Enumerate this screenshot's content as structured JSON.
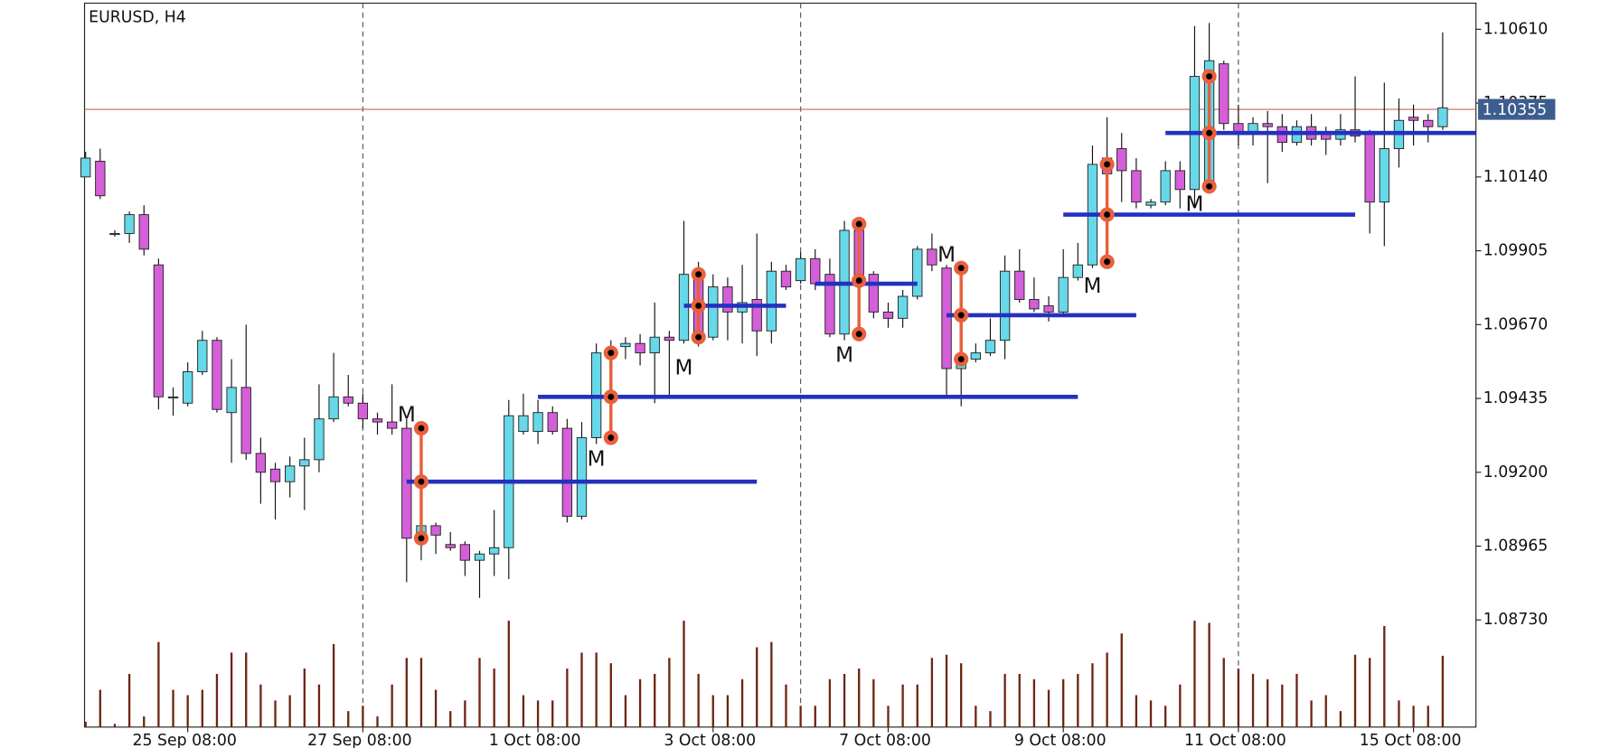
{
  "chart_data": {
    "type": "candlestick",
    "title": "EURUSD, H4",
    "categories": [
      null,
      null,
      null,
      null,
      null,
      null,
      null,
      "25 Sep 08:00",
      null,
      null,
      null,
      null,
      null,
      null,
      null,
      null,
      null,
      null,
      null,
      "27 Sep 08:00",
      null,
      null,
      null,
      null,
      null,
      null,
      null,
      null,
      null,
      null,
      null,
      "1 Oct 08:00",
      null,
      null,
      null,
      null,
      null,
      null,
      null,
      null,
      null,
      null,
      null,
      "3 Oct 08:00",
      null,
      null,
      null,
      null,
      null,
      null,
      null,
      null,
      null,
      null,
      null,
      "7 Oct 08:00",
      null,
      null,
      null,
      null,
      null,
      null,
      null,
      null,
      null,
      null,
      null,
      "9 Oct 08:00",
      null,
      null,
      null,
      null,
      null,
      null,
      null,
      null,
      null,
      null,
      null,
      "11 Oct 08:00",
      null,
      null,
      null,
      null,
      null,
      null,
      null,
      null,
      null,
      null,
      null,
      "15 Oct 08:00",
      null,
      null
    ],
    "open": [
      1.1014,
      1.1019,
      1.0996,
      1.0996,
      1.1002,
      1.0986,
      1.0944,
      1.0942,
      1.0952,
      1.0962,
      1.0939,
      1.0947,
      1.0926,
      1.0921,
      1.0917,
      1.0922,
      1.0924,
      1.0937,
      1.0944,
      1.0942,
      1.0937,
      1.0936,
      1.0934,
      1.09,
      1.0903,
      1.0897,
      1.0897,
      1.0892,
      1.0894,
      1.0896,
      1.0933,
      1.0933,
      1.0939,
      1.0934,
      1.0906,
      1.0931,
      1.0957,
      1.096,
      1.0961,
      1.0958,
      1.0963,
      1.0962,
      1.0983,
      1.0963,
      1.0979,
      1.0971,
      1.0975,
      1.0965,
      1.0984,
      1.0981,
      1.0988,
      1.0983,
      1.0964,
      1.0997,
      1.0983,
      1.0971,
      1.0969,
      1.0976,
      1.0991,
      1.0985,
      1.0953,
      1.0956,
      1.0958,
      1.0962,
      1.0984,
      1.0975,
      1.0973,
      1.0971,
      1.0982,
      1.0986,
      1.102,
      1.1023,
      1.1016,
      1.1005,
      1.1006,
      1.1016,
      1.101,
      1.1011,
      1.105,
      1.1031,
      1.1028,
      1.1031,
      1.103,
      1.1025,
      1.103,
      1.1028,
      1.1026,
      1.1029,
      1.1028,
      1.1006,
      1.1023,
      1.1033,
      1.1032,
      1.103
    ],
    "high": [
      1.1022,
      1.1023,
      1.0997,
      1.1003,
      1.1005,
      1.0988,
      1.0947,
      1.0955,
      1.0965,
      1.0963,
      1.0956,
      1.0967,
      1.0931,
      1.0923,
      1.0925,
      1.0931,
      1.0948,
      1.0958,
      1.0951,
      1.0945,
      1.0939,
      1.0948,
      1.0937,
      1.0908,
      1.0904,
      1.0901,
      1.0898,
      1.0895,
      1.0908,
      1.0943,
      1.0945,
      1.0943,
      1.0941,
      1.0937,
      1.0936,
      1.0961,
      1.0962,
      1.0963,
      1.0964,
      1.0974,
      1.0965,
      1.1,
      1.0987,
      1.0983,
      1.0982,
      1.0986,
      1.0996,
      1.0987,
      1.0986,
      1.099,
      1.0991,
      1.0988,
      1.1,
      1.1001,
      1.0984,
      1.0974,
      1.0978,
      1.0992,
      1.0996,
      1.0986,
      1.0969,
      1.0961,
      1.0969,
      1.0989,
      1.0991,
      1.0982,
      1.0976,
      1.0991,
      1.0993,
      1.1024,
      1.1033,
      1.1028,
      1.102,
      1.1007,
      1.1019,
      1.1019,
      1.1062,
      1.1063,
      1.1051,
      1.1037,
      1.1033,
      1.1035,
      1.1034,
      1.1032,
      1.1034,
      1.103,
      1.1034,
      1.1046,
      1.1029,
      1.1044,
      1.1039,
      1.1037,
      1.1034,
      1.106
    ],
    "low": [
      1.1014,
      1.1007,
      1.0995,
      1.0993,
      1.0989,
      1.094,
      1.0938,
      1.0941,
      1.0951,
      1.0939,
      1.0923,
      1.0924,
      1.091,
      1.0905,
      1.0912,
      1.0908,
      1.092,
      1.0936,
      1.0941,
      1.0934,
      1.0932,
      1.0932,
      1.0885,
      1.0892,
      1.0894,
      1.0895,
      1.0887,
      1.088,
      1.0887,
      1.0886,
      1.0932,
      1.0929,
      1.0932,
      1.0904,
      1.0905,
      1.0929,
      1.0934,
      1.0956,
      1.0954,
      1.0942,
      1.0944,
      1.0961,
      1.096,
      1.0962,
      1.0962,
      1.0961,
      1.0957,
      1.0961,
      1.0978,
      1.098,
      1.0978,
      1.0963,
      1.0962,
      1.0979,
      1.0969,
      1.0966,
      1.0966,
      1.0975,
      1.0984,
      1.0944,
      1.0941,
      1.0955,
      1.0957,
      1.0956,
      1.0974,
      1.0971,
      1.0968,
      1.097,
      1.0981,
      1.0985,
      1.1006,
      1.1006,
      1.1004,
      1.1004,
      1.1005,
      1.1004,
      1.1004,
      1.101,
      1.1029,
      1.1024,
      1.1024,
      1.1012,
      1.1022,
      1.1024,
      1.1024,
      1.1021,
      1.1024,
      1.1025,
      1.0996,
      1.0992,
      1.1017,
      1.1024,
      1.1025,
      1.1029
    ],
    "close": [
      1.102,
      1.1008,
      1.0996,
      1.1002,
      1.0991,
      1.0944,
      1.0944,
      1.0952,
      1.0962,
      1.094,
      1.0947,
      1.0926,
      1.092,
      1.0917,
      1.0922,
      1.0924,
      1.0937,
      1.0944,
      1.0942,
      1.0937,
      1.0936,
      1.0934,
      1.0899,
      1.0903,
      1.09,
      1.0896,
      1.0892,
      1.0894,
      1.0896,
      1.0938,
      1.0938,
      1.0939,
      1.0933,
      1.0906,
      1.0931,
      1.0958,
      1.0959,
      1.0961,
      1.0958,
      1.0963,
      1.0962,
      1.0983,
      1.0962,
      1.0979,
      1.0971,
      1.0974,
      1.0965,
      1.0984,
      1.0979,
      1.0988,
      1.098,
      1.0964,
      1.0997,
      1.0981,
      1.0971,
      1.0969,
      1.0976,
      1.0991,
      1.0986,
      1.0953,
      1.0957,
      1.0958,
      1.0962,
      1.0984,
      1.0975,
      1.0972,
      1.0971,
      1.0982,
      1.0986,
      1.1018,
      1.1015,
      1.1016,
      1.1006,
      1.1006,
      1.1016,
      1.101,
      1.1046,
      1.1051,
      1.1031,
      1.1028,
      1.1031,
      1.103,
      1.1025,
      1.103,
      1.1026,
      1.1026,
      1.1029,
      1.1027,
      1.1006,
      1.1023,
      1.1032,
      1.1032,
      1.103,
      1.1036
    ],
    "volume": [
      5,
      35,
      3,
      50,
      10,
      80,
      35,
      30,
      35,
      50,
      70,
      70,
      40,
      25,
      30,
      55,
      40,
      78,
      15,
      20,
      10,
      40,
      65,
      65,
      35,
      15,
      25,
      65,
      55,
      100,
      30,
      25,
      25,
      55,
      70,
      70,
      60,
      30,
      45,
      50,
      65,
      100,
      50,
      30,
      30,
      45,
      75,
      80,
      40,
      20,
      20,
      45,
      50,
      55,
      45,
      20,
      40,
      40,
      65,
      68,
      60,
      20,
      15,
      50,
      50,
      45,
      35,
      45,
      50,
      60,
      70,
      88,
      30,
      25,
      20,
      40,
      100,
      98,
      65,
      55,
      50,
      45,
      40,
      50,
      25,
      30,
      15,
      68,
      65,
      95,
      25,
      20,
      20,
      67
    ],
    "vlim": [
      0,
      100
    ],
    "bull_color": "#66d8e8",
    "bear_color": "#d45fd8",
    "volume_color": "#6e2412",
    "ylim": [
      1.08389,
      1.10693
    ],
    "yticks": [
      {
        "value": 1.1061,
        "label": "1.10610"
      },
      {
        "value": 1.10375,
        "label": "1.10375"
      },
      {
        "value": 1.1014,
        "label": "1.10140"
      },
      {
        "value": 1.09905,
        "label": "1.09905"
      },
      {
        "value": 1.0967,
        "label": "1.09670"
      },
      {
        "value": 1.09435,
        "label": "1.09435"
      },
      {
        "value": 1.092,
        "label": "1.09200"
      },
      {
        "value": 1.08965,
        "label": "1.08965"
      },
      {
        "value": 1.0873,
        "label": "1.08730"
      }
    ],
    "last_price": {
      "value": 1.10355,
      "label": "1.10355"
    },
    "levels": [
      1.0917,
      1.0944,
      1.0973,
      1.098,
      1.097,
      1.1002,
      1.1028
    ],
    "level_color": "#2430c0",
    "markers": [
      [
        1.0934,
        1.0917,
        1.0899
      ],
      [
        1.0958,
        1.0944,
        1.0931
      ],
      [
        1.0983,
        1.0973,
        1.0963
      ],
      [
        1.0999,
        1.0981,
        1.0964
      ],
      [
        1.0985,
        1.097,
        1.0956
      ],
      [
        1.1018,
        1.1002,
        1.0987
      ],
      [
        1.1046,
        1.1028,
        1.1011
      ]
    ],
    "marker_color": "#e8603c",
    "annotations": [
      {
        "text": "M",
        "value": 1.0938
      },
      {
        "text": "M",
        "value": 1.0924
      },
      {
        "text": "M",
        "value": 1.0953
      },
      {
        "text": "M",
        "value": 1.0957
      },
      {
        "text": "M",
        "value": 1.0989
      },
      {
        "text": "M",
        "value": 1.0979
      },
      {
        "text": "M",
        "value": 1.1005
      }
    ]
  }
}
